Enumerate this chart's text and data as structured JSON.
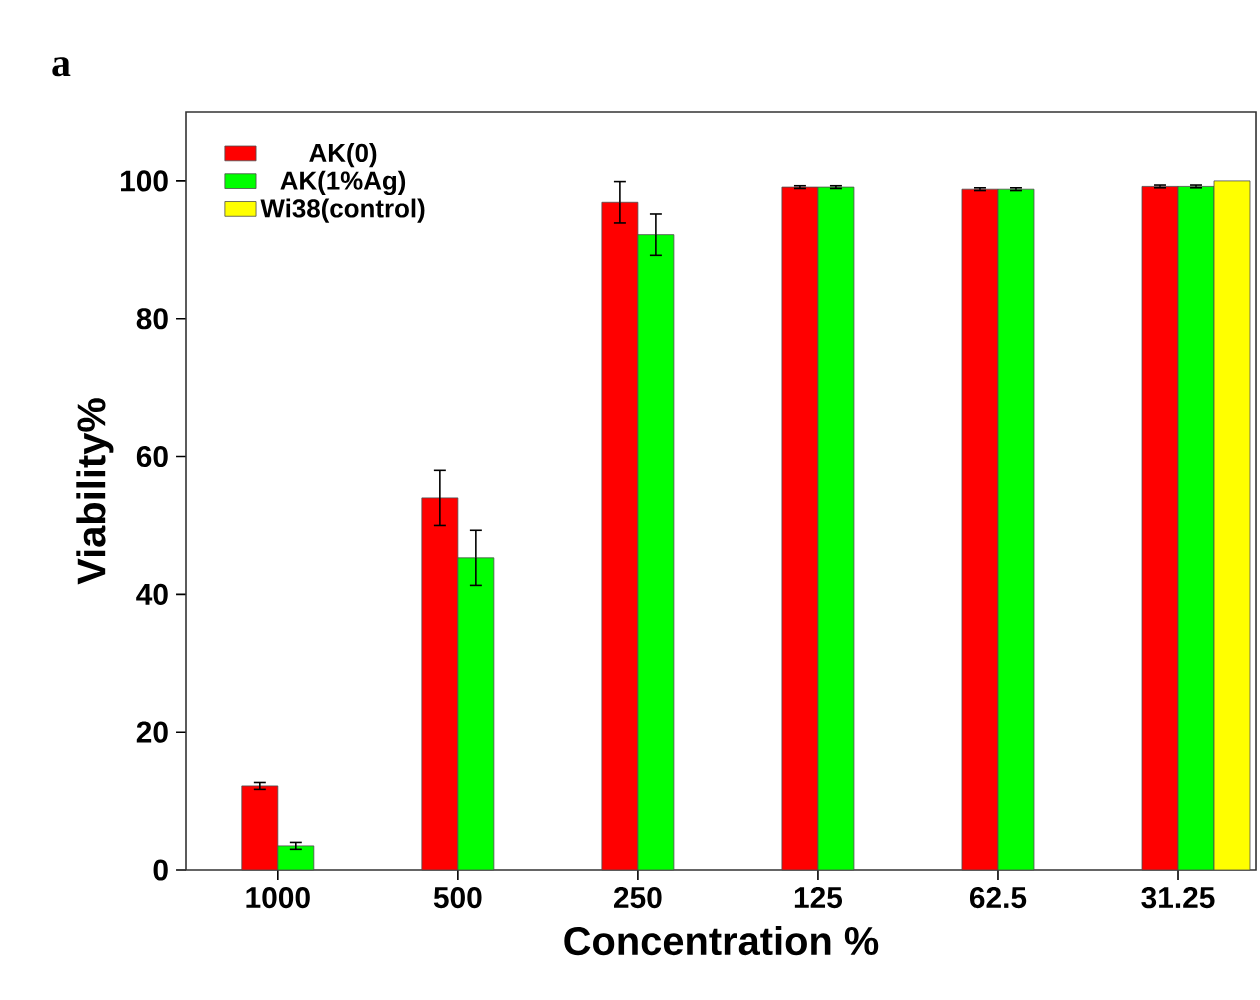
{
  "chart_data": {
    "type": "bar",
    "xlabel": "Concentration %",
    "ylabel": "Viability%",
    "annotations": [
      "a"
    ],
    "categories": [
      "1000",
      "500",
      "250",
      "125",
      "62.5",
      "31.25"
    ],
    "series": [
      {
        "name": "AK(0)",
        "color": "#ff0000",
        "values": [
          12.2,
          54,
          96.9,
          99.1,
          98.8,
          99.2
        ],
        "errors": [
          0.5,
          4,
          3,
          0.2,
          0.2,
          0.2
        ]
      },
      {
        "name": "AK(1%Ag)",
        "color": "#00ff00",
        "values": [
          3.5,
          45.3,
          92.2,
          99.1,
          98.8,
          99.2
        ],
        "errors": [
          0.5,
          4,
          3,
          0.2,
          0.2,
          0.2
        ]
      },
      {
        "name": "Wi38(control)",
        "color": "#ffff00",
        "values": [
          null,
          null,
          null,
          null,
          null,
          100
        ]
      }
    ],
    "ylim": [
      0,
      110
    ],
    "yticks": [
      0,
      20,
      40,
      60,
      80,
      100
    ],
    "legend": "top left"
  }
}
